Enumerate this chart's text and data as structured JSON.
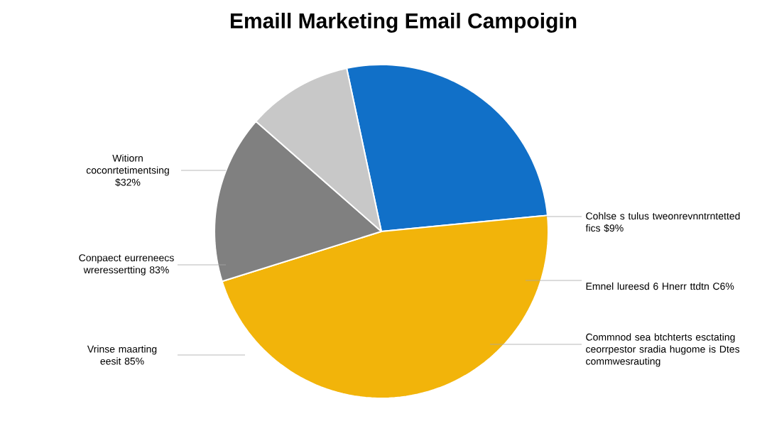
{
  "chart_data": {
    "type": "pie",
    "title": "Emaill Marketing Email Campoigin",
    "categories": [
      null,
      null,
      null,
      null
    ],
    "values": [
      26.8,
      46.7,
      16.3,
      10.2
    ],
    "colors": [
      "#1170c8",
      "#f2b40a",
      "#808080",
      "#c8c8c8"
    ],
    "annotations": [
      "Witiorn coconrtetimentsing $32%",
      "Conpaect eurreneecs wreressertting 83%",
      "Vrinse maarting eesit 85%",
      "Cohlse s tulus tweonrevnntrntetted fics $9%",
      "Emnel lureesd 6 Hnerr ttdtn C6%",
      "Commnod sea btchterts esctating ceorrpestor sradia hugome is Dtes commwesrauting"
    ]
  }
}
